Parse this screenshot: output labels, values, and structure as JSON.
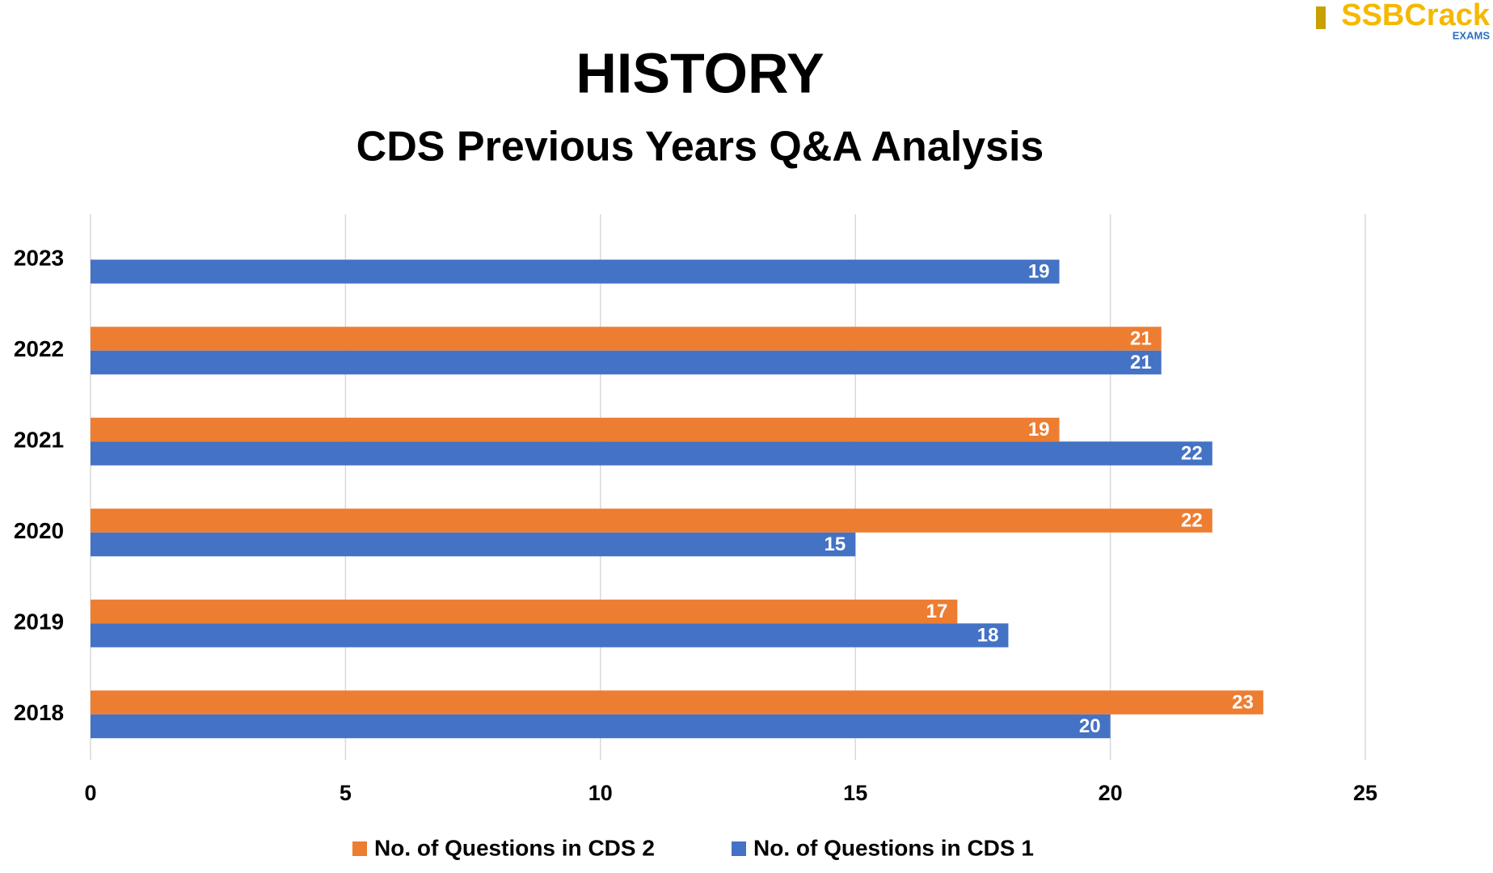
{
  "logo": {
    "brand": "SSBCrack",
    "sub": "EXAMS"
  },
  "chart_data": {
    "type": "bar",
    "orientation": "horizontal",
    "title": "HISTORY",
    "subtitle": "CDS Previous Years Q&A Analysis",
    "categories": [
      "2023",
      "2022",
      "2021",
      "2020",
      "2019",
      "2018"
    ],
    "series": [
      {
        "name": "No. of Questions in CDS 2",
        "color": "#ed7d31",
        "values": [
          null,
          21,
          19,
          22,
          17,
          23
        ]
      },
      {
        "name": "No. of Questions in CDS 1",
        "color": "#4472c4",
        "values": [
          19,
          21,
          22,
          15,
          18,
          20
        ]
      }
    ],
    "xlim": [
      0,
      25
    ],
    "xticks": [
      0,
      5,
      10,
      15,
      20,
      25
    ],
    "grid": true,
    "legend": "bottom"
  }
}
